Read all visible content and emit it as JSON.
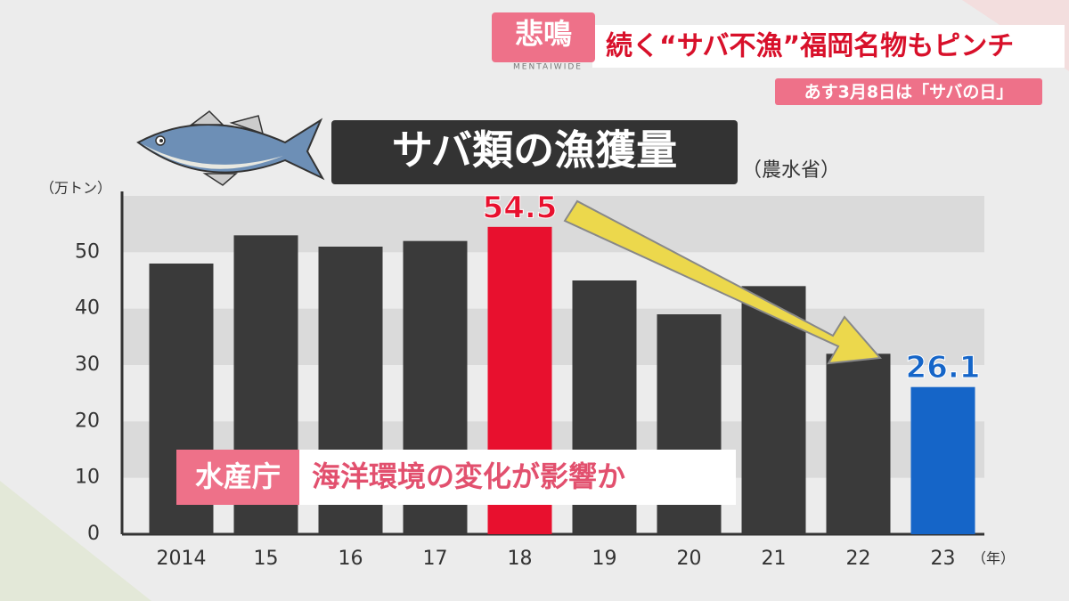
{
  "header": {
    "tag": "悲鳴",
    "program": "MENTAIWIDE",
    "headline": "続く“サバ不漁”福岡名物もピンチ",
    "subheadline": "あす3月8日は「サバの日」"
  },
  "caption": {
    "source": "水産庁",
    "text": "海洋環境の変化が影響か"
  },
  "chart_data": {
    "type": "bar",
    "title": "サバ類の漁獲量",
    "source": "（農水省）",
    "y_unit": "（万トン）",
    "x_unit": "（年）",
    "categories": [
      "2014",
      "15",
      "16",
      "17",
      "18",
      "19",
      "20",
      "21",
      "22",
      "23"
    ],
    "values": [
      48,
      53,
      51,
      52,
      54.5,
      45,
      39,
      44,
      32,
      26.1
    ],
    "value_labels": [
      null,
      null,
      null,
      null,
      "54.5",
      null,
      null,
      null,
      null,
      "26.1"
    ],
    "colors": [
      "#3a3a3a",
      "#3a3a3a",
      "#3a3a3a",
      "#3a3a3a",
      "#e8102e",
      "#3a3a3a",
      "#3a3a3a",
      "#3a3a3a",
      "#3a3a3a",
      "#1565c8"
    ],
    "ylim": [
      0,
      60
    ],
    "yticks": [
      0,
      10,
      20,
      30,
      40,
      50
    ],
    "grid": true
  }
}
